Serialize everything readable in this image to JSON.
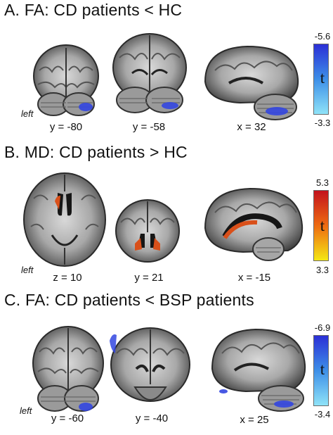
{
  "panels": [
    {
      "title": "A. FA: CD patients < HC",
      "left_label": "left",
      "coords": [
        "y = -80",
        "y = -58",
        "x = 32"
      ],
      "colorbar": {
        "top": "-5.6",
        "bottom": "-3.3",
        "symbol": "t",
        "colors": [
          "#2b2fd6",
          "#3d8fe8",
          "#8fe3f8"
        ]
      }
    },
    {
      "title": "B. MD: CD patients > HC",
      "left_label": "left",
      "coords": [
        "z = 10",
        "y = 21",
        "x = -15"
      ],
      "colorbar": {
        "top": "5.3",
        "bottom": "3.3",
        "symbol": "t",
        "colors": [
          "#c3121d",
          "#ee6b12",
          "#f4e814"
        ]
      }
    },
    {
      "title": "C. FA: CD patients < BSP patients",
      "left_label": "left",
      "coords": [
        "y = -60",
        "y = -40",
        "x = 25"
      ],
      "colorbar": {
        "top": "-6.9",
        "bottom": "-3.4",
        "symbol": "t",
        "colors": [
          "#2b2fd6",
          "#3d8fe8",
          "#8fe3f8"
        ]
      }
    }
  ]
}
